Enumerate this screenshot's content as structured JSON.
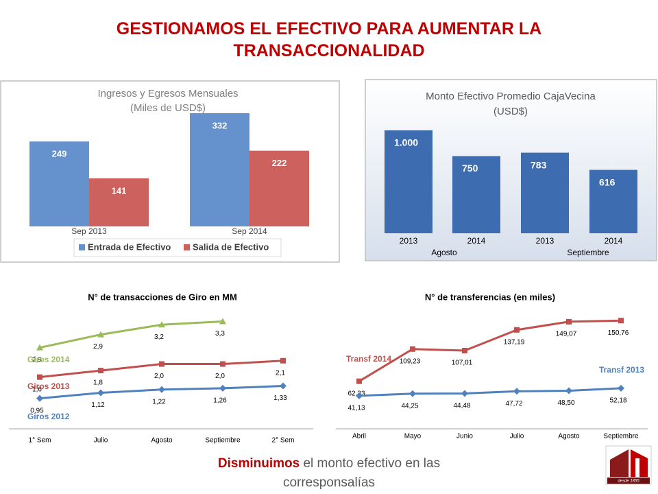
{
  "title": "GESTIONAMOS EL EFECTIVO PARA AUMENTAR LA TRANSACCIONALIDAD",
  "footer": {
    "highlight": "Disminuimos",
    "text": "el monto efectivo en las corresponsalías"
  },
  "logo_text": "desde 1855",
  "chart_data": [
    {
      "type": "grouped_bar",
      "title": "Ingresos y Egresos Mensuales",
      "subtitle": "(Miles de USD$)",
      "categories": [
        "Sep 2013",
        "Sep 2014"
      ],
      "series": [
        {
          "name": "Entrada de Efectivo",
          "color": "#6592cc",
          "values": [
            249,
            332
          ]
        },
        {
          "name": "Salida de Efectivo",
          "color": "#cd615e",
          "values": [
            141,
            222
          ]
        }
      ]
    },
    {
      "type": "bar",
      "title": "Monto Efectivo Promedio CajaVecina",
      "subtitle": "(USD$)",
      "categories": [
        "2013",
        "2014",
        "2013",
        "2014"
      ],
      "groups": [
        "Agosto",
        "Septiembre"
      ],
      "values": [
        1000,
        750,
        783,
        616
      ],
      "value_labels": [
        "1.000",
        "750",
        "783",
        "616"
      ],
      "color": "#3d6db0"
    },
    {
      "type": "line",
      "title": "N° de transacciones de Giro en MM",
      "categories": [
        "1° Sem",
        "Julio",
        "Agosto",
        "Septiembre",
        "2° Sem"
      ],
      "series": [
        {
          "name": "Giros 2014",
          "color": "#9bbb59",
          "values": [
            2.5,
            2.9,
            3.2,
            3.3,
            null
          ],
          "value_labels": [
            "2,5",
            "2,9",
            "3,2",
            "3,3",
            null
          ]
        },
        {
          "name": "Giros 2013",
          "color": "#c0504d",
          "values": [
            1.6,
            1.8,
            2.0,
            2.0,
            2.1
          ],
          "value_labels": [
            "1,6",
            "1,8",
            "2,0",
            "2,0",
            "2,1"
          ]
        },
        {
          "name": "Giros 2012",
          "color": "#4f81bd",
          "values": [
            0.95,
            1.12,
            1.22,
            1.26,
            1.33
          ],
          "value_labels": [
            "0,95",
            "1,12",
            "1,22",
            "1,26",
            "1,33"
          ]
        }
      ]
    },
    {
      "type": "line",
      "title": "N° de transferencias (en miles)",
      "categories": [
        "Abril",
        "Mayo",
        "Junio",
        "Julio",
        "Agosto",
        "Septiembre"
      ],
      "series": [
        {
          "name": "Transf 2014",
          "color": "#c0504d",
          "values": [
            62.33,
            109.23,
            107.01,
            137.19,
            149.07,
            150.76
          ],
          "value_labels": [
            "62,33",
            "109,23",
            "107,01",
            "137,19",
            "149,07",
            "150,76"
          ]
        },
        {
          "name": "Transf 2013",
          "color": "#4f81bd",
          "values": [
            41.13,
            44.25,
            44.48,
            47.72,
            48.5,
            52.18
          ],
          "value_labels": [
            "41,13",
            "44,25",
            "44,48",
            "47,72",
            "48,50",
            "52,18"
          ]
        }
      ]
    }
  ]
}
